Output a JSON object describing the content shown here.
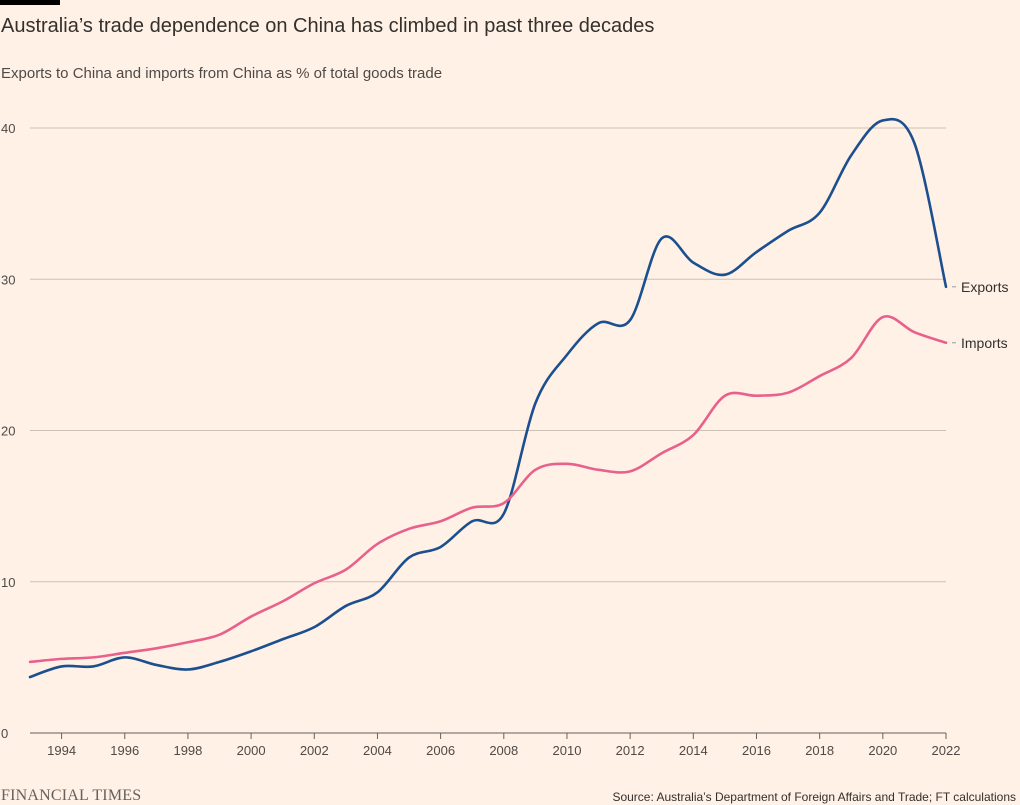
{
  "header": {
    "title": "Australia’s trade dependence on China has climbed in past three decades",
    "subtitle": "Exports to China and imports from China as % of total goods trade"
  },
  "footer": {
    "logo": "FINANCIAL TIMES",
    "source": "Source: Australia’s Department of Foreign Affairs and Trade; FT calculations"
  },
  "chart_data": {
    "type": "line",
    "title": "Australia’s trade dependence on China has climbed in past three decades",
    "subtitle": "Exports to China and imports from China as % of total goods trade",
    "xlabel": "",
    "ylabel": "",
    "xlim": [
      1993,
      2022
    ],
    "ylim": [
      0,
      40
    ],
    "x_ticks": [
      1994,
      1996,
      1998,
      2000,
      2002,
      2004,
      2006,
      2008,
      2010,
      2012,
      2014,
      2016,
      2018,
      2020,
      2022
    ],
    "y_ticks": [
      0,
      10,
      20,
      30,
      40
    ],
    "grid": "horizontal",
    "legend": "direct labels at line ends",
    "x": [
      1993,
      1994,
      1995,
      1996,
      1997,
      1998,
      1999,
      2000,
      2001,
      2002,
      2003,
      2004,
      2005,
      2006,
      2007,
      2008,
      2009,
      2010,
      2011,
      2012,
      2013,
      2014,
      2015,
      2016,
      2017,
      2018,
      2019,
      2020,
      2021,
      2022
    ],
    "series": [
      {
        "name": "Exports",
        "color": "#1b4f8f",
        "values": [
          3.7,
          4.4,
          4.4,
          5.0,
          4.5,
          4.2,
          4.7,
          5.4,
          6.2,
          7.0,
          8.4,
          9.3,
          11.6,
          12.3,
          14.0,
          14.5,
          21.8,
          25.0,
          27.1,
          27.3,
          32.7,
          31.1,
          30.3,
          31.8,
          33.2,
          34.4,
          38.2,
          40.5,
          39.0,
          29.5
        ]
      },
      {
        "name": "Imports",
        "color": "#e8618c",
        "values": [
          4.7,
          4.9,
          5.0,
          5.3,
          5.6,
          6.0,
          6.5,
          7.7,
          8.7,
          9.9,
          10.8,
          12.5,
          13.5,
          14.0,
          14.9,
          15.2,
          17.4,
          17.8,
          17.4,
          17.3,
          18.5,
          19.7,
          22.3,
          22.3,
          22.5,
          23.6,
          24.8,
          27.5,
          26.5,
          25.8
        ]
      }
    ]
  }
}
